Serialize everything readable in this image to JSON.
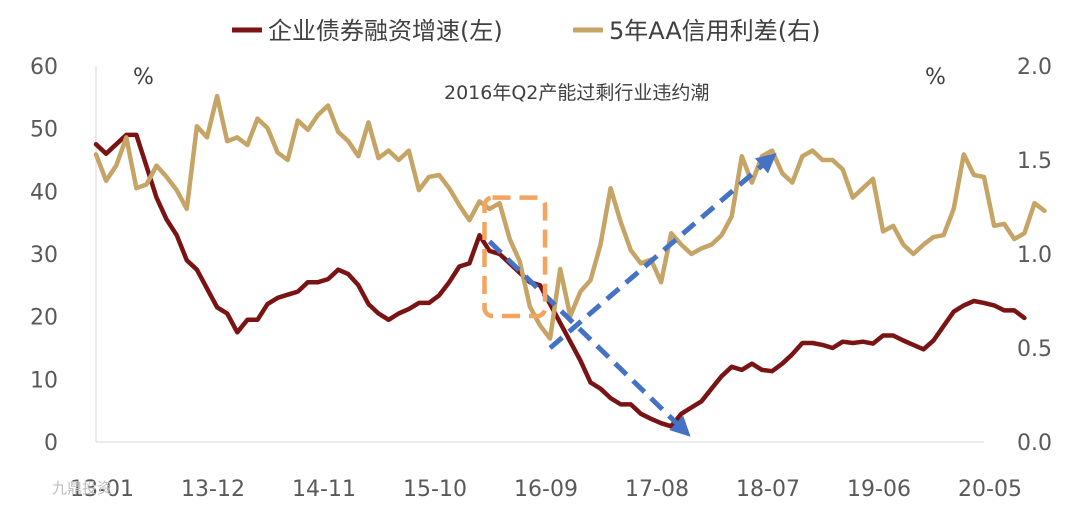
{
  "chart_data": {
    "type": "line",
    "legend": {
      "placement": "top",
      "entries": [
        "企业债券融资增速(左)",
        "5年AA信用利差(右)"
      ]
    },
    "unit_left": "%",
    "unit_right": "%",
    "annotation": "2016年Q2产能过剩行业违约潮",
    "x_tick_labels": [
      "13-01",
      "13-12",
      "14-11",
      "15-10",
      "16-09",
      "17-08",
      "18-07",
      "19-06",
      "20-05"
    ],
    "x_range": [
      0,
      88
    ],
    "y_left": {
      "range": [
        0,
        60
      ],
      "ticks": [
        "0",
        "10",
        "20",
        "30",
        "40",
        "50",
        "60"
      ]
    },
    "y_right": {
      "range": [
        0,
        2
      ],
      "ticks": [
        "0.0",
        "0.5",
        "1.0",
        "1.5",
        "2.0"
      ]
    },
    "series": [
      {
        "name": "企业债券融资增速(左)",
        "axis": "left",
        "color": "#7a1414",
        "values": [
          47.5,
          46,
          47.5,
          49,
          49,
          44,
          39,
          35.5,
          33,
          29,
          27.5,
          24.5,
          21.5,
          20.5,
          17.5,
          19.5,
          19.5,
          22,
          23,
          23.5,
          24,
          25.5,
          25.5,
          26,
          27.5,
          26.8,
          25,
          22,
          20.5,
          19.5,
          20.5,
          21.2,
          22.2,
          22.2,
          23.4,
          25.5,
          28,
          28.5,
          33,
          30.5,
          30,
          28.5,
          27,
          25.5,
          25,
          22,
          19,
          16,
          13,
          9.5,
          8.5,
          7,
          6,
          6,
          4.5,
          3.7,
          3,
          2.5,
          4.5,
          5.5,
          6.5,
          8.5,
          10.5,
          12,
          11.5,
          12.5,
          11.5,
          11.3,
          12.5,
          14,
          15.8,
          15.8,
          15.5,
          15,
          16,
          15.8,
          16,
          15.7,
          17,
          17,
          16.2,
          15.5,
          14.8,
          16.2,
          18.5,
          20.8,
          21.8,
          22.5,
          22.2,
          21.8,
          21,
          21,
          19.8
        ]
      },
      {
        "name": "5年AA信用利差(右)",
        "axis": "right",
        "color": "#c5a465",
        "values": [
          1.53,
          1.39,
          1.47,
          1.62,
          1.35,
          1.37,
          1.47,
          1.41,
          1.34,
          1.24,
          1.68,
          1.62,
          1.84,
          1.6,
          1.62,
          1.58,
          1.72,
          1.67,
          1.54,
          1.5,
          1.71,
          1.66,
          1.74,
          1.79,
          1.65,
          1.6,
          1.52,
          1.7,
          1.51,
          1.55,
          1.5,
          1.55,
          1.34,
          1.41,
          1.42,
          1.35,
          1.26,
          1.18,
          1.28,
          1.24,
          1.27,
          1.08,
          0.96,
          0.72,
          0.62,
          0.55,
          0.92,
          0.67,
          0.8,
          0.86,
          1.05,
          1.35,
          1.17,
          1.02,
          0.95,
          0.97,
          0.85,
          1.11,
          1.05,
          1.0,
          1.03,
          1.05,
          1.1,
          1.2,
          1.52,
          1.38,
          1.52,
          1.55,
          1.43,
          1.38,
          1.52,
          1.55,
          1.5,
          1.5,
          1.45,
          1.3,
          1.35,
          1.4,
          1.12,
          1.15,
          1.05,
          1.0,
          1.05,
          1.09,
          1.1,
          1.24,
          1.53,
          1.42,
          1.41,
          1.15,
          1.16,
          1.08,
          1.11,
          1.27,
          1.23
        ]
      }
    ],
    "arrows": [
      {
        "from": [
          39,
          32
        ],
        "to": [
          58.5,
          1.5
        ],
        "axis": "left",
        "color": "#4472c4"
      },
      {
        "from": [
          45,
          15
        ],
        "to": [
          67,
          45.5
        ],
        "axis": "left",
        "color": "#4472c4"
      }
    ],
    "highlight_box": {
      "x": [
        38.5,
        44.5
      ],
      "y": [
        1.3,
        0.67
      ],
      "axis": "right",
      "color": "#f4a460"
    }
  },
  "watermark": "九鼎投资"
}
